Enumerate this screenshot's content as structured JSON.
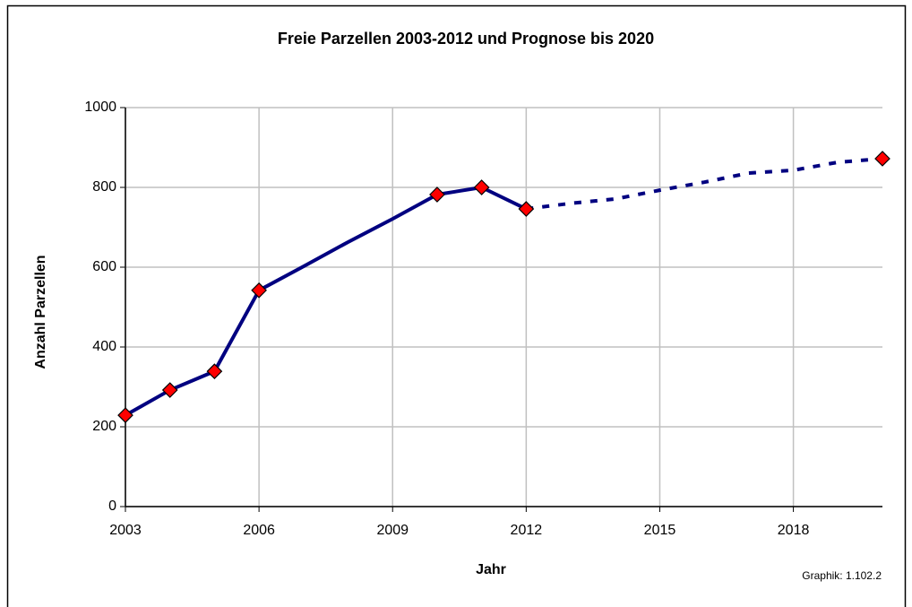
{
  "chart_data": {
    "type": "line",
    "title": "Freie Parzellen 2003-2012 und Prognose bis 2020",
    "x_label": "Jahr",
    "y_label": "Anzahl Parzellen",
    "annotation": "Graphik: 1.102.2",
    "x": [
      2003,
      2004,
      2005,
      2006,
      2007,
      2008,
      2009,
      2010,
      2011,
      2012,
      2013,
      2014,
      2015,
      2016,
      2017,
      2018,
      2019,
      2020
    ],
    "series": [
      {
        "color": "#000080",
        "dashed": false,
        "values": [
          229,
          292,
          339,
          542,
          602,
          663,
          721,
          782,
          800,
          746,
          null,
          null,
          null,
          null,
          null,
          null,
          null,
          null
        ],
        "markers": [
          true,
          true,
          true,
          true,
          false,
          false,
          false,
          true,
          true,
          true,
          false,
          false,
          false,
          false,
          false,
          false,
          false,
          false
        ]
      },
      {
        "color": "#000080",
        "dashed": true,
        "values": [
          null,
          null,
          null,
          null,
          null,
          null,
          null,
          null,
          null,
          746,
          760,
          771,
          793,
          813,
          836,
          843,
          863,
          872
        ],
        "markers": [
          false,
          false,
          false,
          false,
          false,
          false,
          false,
          false,
          false,
          false,
          false,
          false,
          false,
          false,
          false,
          false,
          false,
          true
        ]
      }
    ],
    "marker_color": "#ff0000",
    "xlim": [
      2003,
      2020
    ],
    "xticks": [
      2003,
      2006,
      2009,
      2012,
      2015,
      2018
    ],
    "ylim": [
      0,
      1000
    ],
    "yticks": [
      0,
      200,
      400,
      600,
      800,
      1000
    ],
    "grid": true
  }
}
